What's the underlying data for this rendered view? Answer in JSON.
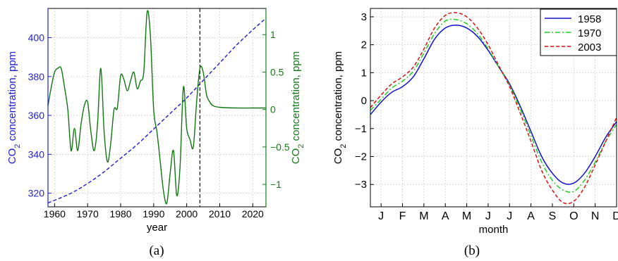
{
  "chart_data": [
    {
      "type": "line",
      "panel_label": "(a)",
      "xlabel": "year",
      "ylabel_left": "CO2 concentration, ppm",
      "ylabel_right": "CO2 concentration, ppm",
      "xlim": [
        1958,
        2024
      ],
      "ylim_left": [
        313,
        415
      ],
      "ylim_right": [
        -1.3,
        1.35
      ],
      "x_ticks": [
        1960,
        1970,
        1980,
        1990,
        2000,
        2010,
        2020
      ],
      "y_ticks_left": [
        320,
        340,
        360,
        380,
        400
      ],
      "y_ticks_right": [
        -1,
        -0.5,
        0,
        0.5,
        1
      ],
      "y_ticks_right_labels": [
        "−1",
        "−0.5",
        "0",
        "0.5",
        "1"
      ],
      "grid": true,
      "vertical_marker_x": 2004,
      "colors": {
        "left_axis": "#1f1fd0",
        "right_axis": "#1a7a1a",
        "trend": "#1c1ccf",
        "anomaly": "#117711"
      },
      "series": [
        {
          "axis": "left",
          "style": "dashed",
          "x": [
            1958,
            1965,
            1970,
            1975,
            1980,
            1985,
            1990,
            1995,
            2000,
            2005,
            2010,
            2015,
            2020,
            2024
          ],
          "y": [
            315,
            320,
            325,
            331,
            338,
            345,
            353,
            361,
            369,
            378,
            387,
            396,
            404,
            410
          ]
        },
        {
          "axis": "right",
          "style": "solid",
          "x": [
            1958,
            1959,
            1960,
            1961,
            1962,
            1963,
            1964,
            1965,
            1966,
            1967,
            1968,
            1969,
            1970,
            1971,
            1972,
            1973,
            1974,
            1975,
            1976,
            1977,
            1978,
            1979,
            1980,
            1981,
            1982,
            1983,
            1984,
            1985,
            1986,
            1987,
            1988,
            1989,
            1990,
            1991,
            1992,
            1993,
            1994,
            1995,
            1996,
            1997,
            1998,
            1999,
            2000,
            2001,
            2002,
            2003,
            2004,
            2005,
            2006,
            2007,
            2008,
            2010,
            2015,
            2020,
            2024
          ],
          "y": [
            0.05,
            0.3,
            0.5,
            0.55,
            0.55,
            0.3,
            0.0,
            -0.55,
            -0.25,
            -0.55,
            -0.2,
            0.05,
            0.1,
            -0.3,
            -0.55,
            -0.2,
            0.55,
            -0.3,
            -0.7,
            -0.45,
            0.0,
            0.02,
            0.45,
            0.4,
            0.25,
            0.38,
            0.5,
            0.28,
            0.38,
            0.5,
            1.3,
            1.0,
            0.0,
            -0.3,
            -0.7,
            -1.1,
            -1.25,
            -0.85,
            -0.55,
            -1.15,
            -0.75,
            0.3,
            -0.25,
            -0.4,
            -0.5,
            0.1,
            0.55,
            0.5,
            0.2,
            0.1,
            0.05,
            0.03,
            0.02,
            0.02,
            0.02
          ]
        }
      ]
    },
    {
      "type": "line",
      "panel_label": "(b)",
      "xlabel": "month",
      "ylabel": "CO2 concentration, ppm",
      "xlim": [
        0.5,
        12.0
      ],
      "ylim": [
        -3.8,
        3.3
      ],
      "categories": [
        "J",
        "F",
        "M",
        "A",
        "M",
        "J",
        "J",
        "A",
        "S",
        "O",
        "N",
        "D"
      ],
      "y_ticks": [
        -3,
        -2,
        -1,
        0,
        1,
        2,
        3
      ],
      "y_ticks_labels": [
        "−3",
        "−2",
        "−1",
        "0",
        "1",
        "2",
        "3"
      ],
      "grid": true,
      "legend": {
        "placement": "top-right",
        "entries": [
          "1958",
          "1970",
          "2003"
        ]
      },
      "x": [
        0.5,
        1.0,
        1.5,
        2.0,
        2.5,
        3.0,
        3.5,
        4.0,
        4.5,
        5.0,
        5.5,
        6.0,
        6.5,
        7.0,
        7.5,
        8.0,
        8.5,
        9.0,
        9.5,
        10.0,
        10.5,
        11.0,
        11.5,
        12.0
      ],
      "series": [
        {
          "name": "1958",
          "color": "#1010d0",
          "style": "solid",
          "y": [
            -0.5,
            -0.05,
            0.3,
            0.5,
            0.85,
            1.5,
            2.2,
            2.6,
            2.7,
            2.6,
            2.3,
            1.8,
            1.2,
            0.6,
            -0.2,
            -1.1,
            -2.0,
            -2.6,
            -2.95,
            -2.95,
            -2.6,
            -2.0,
            -1.3,
            -0.75
          ]
        },
        {
          "name": "1970",
          "color": "#22cc22",
          "style": "dashdot",
          "y": [
            -0.35,
            0.05,
            0.45,
            0.7,
            1.05,
            1.7,
            2.4,
            2.85,
            2.9,
            2.75,
            2.4,
            1.85,
            1.2,
            0.55,
            -0.3,
            -1.25,
            -2.2,
            -2.85,
            -3.2,
            -3.25,
            -2.85,
            -2.2,
            -1.45,
            -0.85
          ]
        },
        {
          "name": "2003",
          "color": "#dd1111",
          "style": "dashed",
          "y": [
            -0.25,
            0.2,
            0.6,
            0.85,
            1.2,
            1.85,
            2.6,
            3.05,
            3.15,
            3.0,
            2.6,
            2.0,
            1.25,
            0.5,
            -0.45,
            -1.45,
            -2.5,
            -3.2,
            -3.65,
            -3.6,
            -3.1,
            -2.3,
            -1.45,
            -0.6
          ]
        }
      ]
    }
  ]
}
